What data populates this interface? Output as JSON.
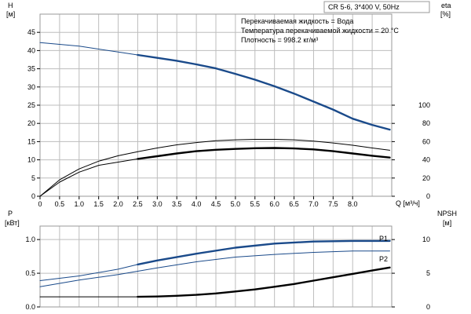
{
  "chart_data": [
    {
      "type": "line",
      "title": "CR 5-6, 3*400 V, 50Hz",
      "notes": [
        "Перекачиваемая жидкость = Вода",
        "Температура перекачиваемой жидкости = 20 °C",
        "Плотность = 998.2 кг/м³"
      ],
      "xlabel": "Q [м³/ч]",
      "xlim": [
        0,
        9
      ],
      "xticks": [
        "0",
        "0.5",
        "1.0",
        "1.5",
        "2.0",
        "2.5",
        "3.0",
        "3.5",
        "4.0",
        "4.5",
        "5.0",
        "5.5",
        "6.0",
        "6.5",
        "7.0",
        "7.5",
        "8.0"
      ],
      "ylabel_left": [
        "H",
        "[м]"
      ],
      "ylim_left": [
        0,
        50
      ],
      "yticks_left": [
        "0",
        "5",
        "10",
        "15",
        "20",
        "25",
        "30",
        "35",
        "40",
        "45"
      ],
      "ylabel_right": [
        "eta",
        "[%]"
      ],
      "ylim_right": [
        0,
        200
      ],
      "yticks_right": [
        "0",
        "20",
        "40",
        "60",
        "80",
        "100"
      ],
      "grid": true,
      "series": [
        {
          "axis": "left",
          "color": "#1a4a8a",
          "weight": "thin",
          "x": [
            0,
            1,
            2,
            2.5
          ],
          "y": [
            42.2,
            41.2,
            39.6,
            38.8
          ]
        },
        {
          "axis": "left",
          "color": "#1a4a8a",
          "weight": "thick",
          "x": [
            2.5,
            3,
            3.5,
            4,
            4.5,
            5,
            5.5,
            6,
            6.5,
            7,
            7.5,
            8,
            8.5,
            8.95
          ],
          "y": [
            38.8,
            38.0,
            37.2,
            36.2,
            35.1,
            33.6,
            32.0,
            30.2,
            28.2,
            26.0,
            23.8,
            21.3,
            19.6,
            18.3
          ]
        },
        {
          "axis": "right",
          "color": "#000000",
          "weight": "thin",
          "x": [
            0,
            0.5,
            1,
            1.5,
            2,
            2.5,
            3,
            3.5,
            4,
            4.5,
            5,
            5.5,
            6,
            6.5,
            7,
            7.5,
            8,
            8.5,
            8.95
          ],
          "y": [
            0,
            18,
            30,
            38.5,
            44.5,
            49,
            53,
            56.5,
            59,
            61,
            62,
            62.5,
            62.5,
            62,
            60.5,
            58.5,
            56,
            53,
            50.5
          ]
        },
        {
          "axis": "right",
          "color": "#000000",
          "weight": "thin",
          "x": [
            0,
            0.5,
            1,
            1.5,
            2,
            2.5
          ],
          "y": [
            0,
            15.5,
            26.5,
            34,
            37.5,
            41
          ]
        },
        {
          "axis": "right",
          "color": "#000000",
          "weight": "thick",
          "x": [
            2.5,
            3,
            3.5,
            4,
            4.5,
            5,
            5.5,
            6,
            6.5,
            7,
            7.5,
            8,
            8.5,
            8.95
          ],
          "y": [
            41,
            44,
            47,
            49.5,
            51,
            52,
            52.8,
            53,
            52.5,
            51.5,
            49.5,
            47,
            44.5,
            42.5
          ]
        }
      ]
    },
    {
      "type": "line",
      "xlim": [
        0,
        9
      ],
      "ylabel_left": [
        "P",
        "[кВт]"
      ],
      "ylim_left": [
        0,
        1.2
      ],
      "yticks_left": [
        "0.0",
        "0.5",
        "1.0"
      ],
      "ylabel_right": [
        "NPSH",
        "[м]"
      ],
      "ylim_right": [
        0,
        12
      ],
      "yticks_right": [
        "0",
        "5",
        "10"
      ],
      "grid": true,
      "series": [
        {
          "name": "P1",
          "axis": "left",
          "color": "#1a4a8a",
          "weight": "thin",
          "x": [
            0,
            1,
            2,
            2.5
          ],
          "y": [
            0.39,
            0.46,
            0.56,
            0.63
          ]
        },
        {
          "name": "P1",
          "axis": "left",
          "color": "#1a4a8a",
          "weight": "thick",
          "x": [
            2.5,
            3,
            4,
            5,
            6,
            7,
            8,
            8.95
          ],
          "y": [
            0.63,
            0.69,
            0.79,
            0.88,
            0.94,
            0.97,
            0.98,
            0.98
          ]
        },
        {
          "name": "P2",
          "axis": "left",
          "color": "#1a4a8a",
          "weight": "thin",
          "x": [
            0,
            1,
            2,
            3,
            4,
            5,
            6,
            7,
            8,
            8.95
          ],
          "y": [
            0.3,
            0.4,
            0.48,
            0.58,
            0.67,
            0.74,
            0.78,
            0.81,
            0.83,
            0.83
          ]
        },
        {
          "axis": "right",
          "color": "#000000",
          "weight": "thin",
          "x": [
            0,
            1,
            2,
            2.5
          ],
          "y": [
            1.5,
            1.5,
            1.5,
            1.5
          ]
        },
        {
          "axis": "right",
          "color": "#000000",
          "weight": "thick",
          "x": [
            2.5,
            3,
            3.5,
            4,
            4.5,
            5,
            5.5,
            6,
            6.5,
            7,
            7.5,
            8,
            8.5,
            8.95
          ],
          "y": [
            1.5,
            1.55,
            1.65,
            1.8,
            2.0,
            2.3,
            2.6,
            3.0,
            3.4,
            3.9,
            4.4,
            4.9,
            5.4,
            5.85
          ]
        }
      ]
    }
  ]
}
